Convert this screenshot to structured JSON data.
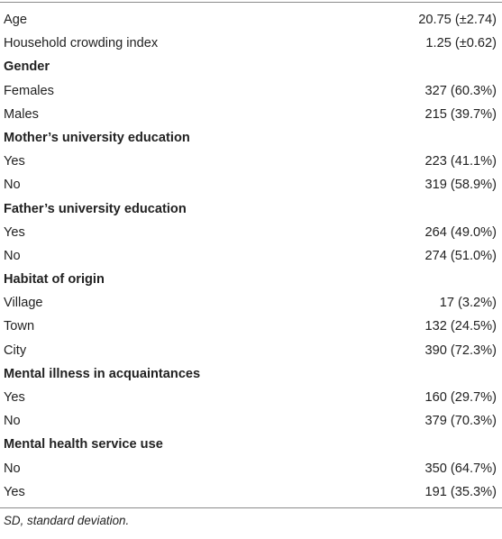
{
  "table": {
    "rows": [
      {
        "label": "Age",
        "value": "20.75 (±2.74)"
      },
      {
        "label": "Household crowding index",
        "value": "1.25 (±0.62)"
      },
      {
        "label": "Gender",
        "value": ""
      },
      {
        "label": "Females",
        "value": "327 (60.3%)"
      },
      {
        "label": "Males",
        "value": "215 (39.7%)"
      },
      {
        "label": "Mother’s university education",
        "value": ""
      },
      {
        "label": "Yes",
        "value": "223 (41.1%)"
      },
      {
        "label": "No",
        "value": "319 (58.9%)"
      },
      {
        "label": "Father’s university education",
        "value": ""
      },
      {
        "label": "Yes",
        "value": "264 (49.0%)"
      },
      {
        "label": "No",
        "value": "274 (51.0%)"
      },
      {
        "label": "Habitat of origin",
        "value": ""
      },
      {
        "label": "Village",
        "value": "17 (3.2%)"
      },
      {
        "label": "Town",
        "value": "132 (24.5%)"
      },
      {
        "label": "City",
        "value": "390 (72.3%)"
      },
      {
        "label": "Mental illness in acquaintances",
        "value": ""
      },
      {
        "label": "Yes",
        "value": "160 (29.7%)"
      },
      {
        "label": "No",
        "value": "379 (70.3%)"
      },
      {
        "label": "Mental health service use",
        "value": ""
      },
      {
        "label": "No",
        "value": "350 (64.7%)"
      },
      {
        "label": "Yes",
        "value": "191 (35.3%)"
      }
    ]
  },
  "footnote": "SD, standard deviation."
}
